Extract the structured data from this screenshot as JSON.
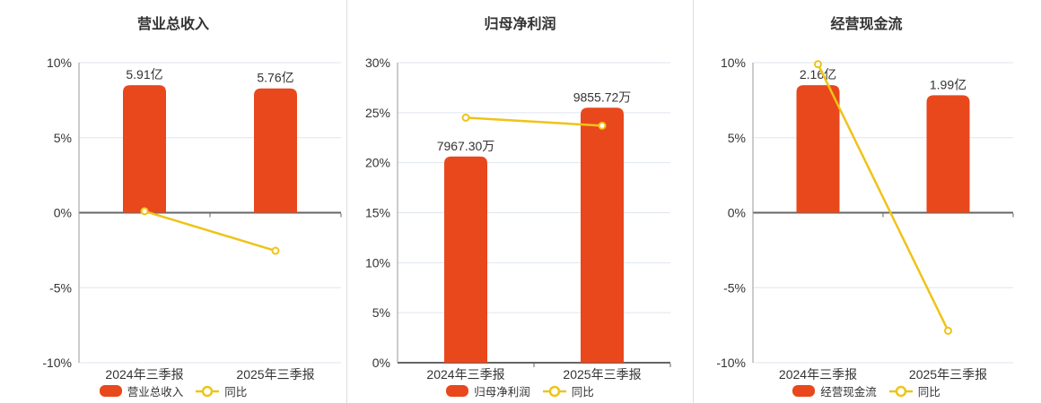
{
  "colors": {
    "bar": "#E8481C",
    "line": "#EFC319",
    "text": "#333333",
    "zero_axis": "#666666",
    "y_axis_line": "#999999",
    "gridline": "#DFE5EF",
    "divider": "#DDDDDD",
    "marker_fill": "#FFFFFF",
    "background": "#FFFFFF"
  },
  "chart_data": [
    {
      "type": "bar+line",
      "title": "营业总收入",
      "categories": [
        "2024年三季报",
        "2025年三季报"
      ],
      "bars": {
        "name": "营业总收入",
        "unit": "亿",
        "values": [
          5.91,
          5.76
        ],
        "labels": [
          "5.91亿",
          "5.76亿"
        ]
      },
      "line": {
        "name": "同比",
        "values_pct": [
          0.1,
          -2.54
        ]
      },
      "y_axis": {
        "min": -10,
        "max": 10,
        "step": 5,
        "tick_labels": [
          "10%",
          "5%",
          "0%",
          "-5%",
          "-10%"
        ]
      },
      "legend_position": "bottom",
      "grid": true
    },
    {
      "type": "bar+line",
      "title": "归母净利润",
      "categories": [
        "2024年三季报",
        "2025年三季报"
      ],
      "bars": {
        "name": "归母净利润",
        "unit": "万",
        "values": [
          7967.3,
          9855.72
        ],
        "labels": [
          "7967.30万",
          "9855.72万"
        ]
      },
      "line": {
        "name": "同比",
        "values_pct": [
          24.5,
          23.7
        ]
      },
      "y_axis": {
        "min": 0,
        "max": 30,
        "step": 5,
        "tick_labels": [
          "30%",
          "25%",
          "20%",
          "15%",
          "10%",
          "5%",
          "0%"
        ]
      },
      "legend_position": "bottom",
      "grid": true
    },
    {
      "type": "bar+line",
      "title": "经营现金流",
      "categories": [
        "2024年三季报",
        "2025年三季报"
      ],
      "bars": {
        "name": "经营现金流",
        "unit": "亿",
        "values": [
          2.16,
          1.99
        ],
        "labels": [
          "2.16亿",
          "1.99亿"
        ]
      },
      "line": {
        "name": "同比",
        "values_pct": [
          9.9,
          -7.87
        ]
      },
      "y_axis": {
        "min": -10,
        "max": 10,
        "step": 5,
        "tick_labels": [
          "10%",
          "5%",
          "0%",
          "-5%",
          "-10%"
        ]
      },
      "legend_position": "bottom",
      "grid": true
    }
  ]
}
